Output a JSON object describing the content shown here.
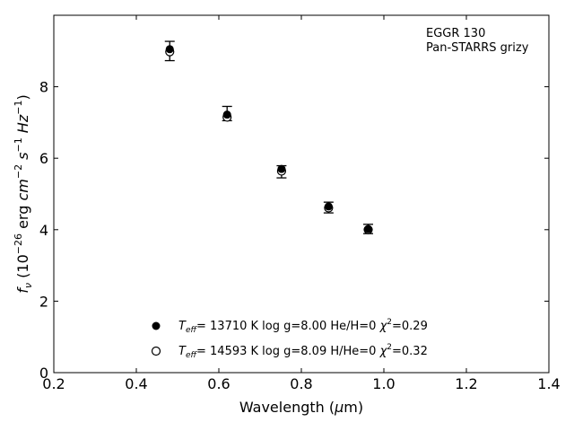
{
  "chart_data": {
    "type": "scatter",
    "annotation": [
      "EGGR 130",
      "Pan-STARRS grizy"
    ],
    "xlabel": {
      "main": "Wavelength (",
      "mu": "μ",
      "unit": "m)"
    },
    "ylabel": {
      "f": "f",
      "nu": "ν",
      "open": " (10",
      "exp1": "−26",
      "erg": " erg ",
      "cm": "cm",
      "exp2": "−2",
      "s": " s",
      "exp3": "−1",
      "hz": " Hz",
      "exp4": "−1",
      "close": ")"
    },
    "xlim": [
      0.2,
      1.4
    ],
    "ylim": [
      0,
      10
    ],
    "xticks": [
      0.2,
      0.4,
      0.6,
      0.8,
      1.0,
      1.2,
      1.4
    ],
    "xtick_labels": [
      "0.2",
      "0.4",
      "0.6",
      "0.8",
      "1.0",
      "1.2",
      "1.4"
    ],
    "yticks": [
      0,
      2,
      4,
      6,
      8
    ],
    "ytick_labels": [
      "0",
      "2",
      "4",
      "6",
      "8"
    ],
    "observed": {
      "x": [
        0.481,
        0.62,
        0.752,
        0.866,
        0.962
      ],
      "y": [
        9.0,
        7.25,
        5.62,
        4.62,
        4.02
      ],
      "yerr": [
        0.27,
        0.2,
        0.17,
        0.15,
        0.13
      ]
    },
    "series": [
      {
        "marker": "filled-circle",
        "label": {
          "t": "T",
          "eff": "eff",
          "rest": "= 13710 K  log g=8.00  He/H=0  ",
          "chi": "χ",
          "two": "2",
          "val": "=0.29"
        },
        "x": [
          0.481,
          0.62,
          0.752,
          0.866,
          0.962
        ],
        "y": [
          9.05,
          7.22,
          5.7,
          4.65,
          4.02
        ]
      },
      {
        "marker": "open-circle",
        "label": {
          "t": "T",
          "eff": "eff",
          "rest": "= 14593 K  log g=8.09  H/He=0  ",
          "chi": "χ",
          "two": "2",
          "val": "=0.32"
        },
        "x": [
          0.481,
          0.62,
          0.752,
          0.866,
          0.962
        ],
        "y": [
          8.98,
          7.15,
          5.64,
          4.61,
          4.0
        ]
      }
    ],
    "colors": {
      "marker": "#000000",
      "open_fill": "#ffffff"
    },
    "grid": false,
    "legend_position": "lower center"
  }
}
